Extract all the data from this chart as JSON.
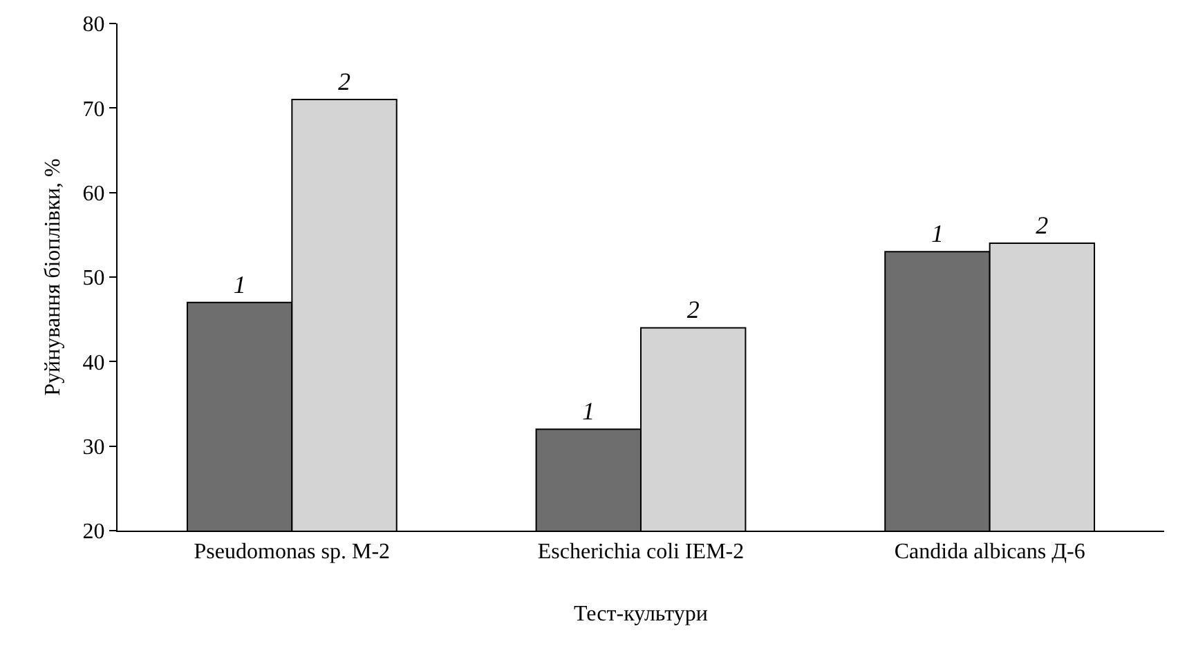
{
  "chart_data": {
    "type": "bar",
    "xlabel": "Тест-культури",
    "ylabel": "Руйнування біоплівки, %",
    "categories": [
      "Pseudomonas sp. M-2",
      "Escherichia coli IEM-2",
      "Candida albicans Д-6"
    ],
    "series": [
      {
        "name": "1",
        "color": "#6e6e6e",
        "values": [
          47,
          32,
          53
        ]
      },
      {
        "name": "2",
        "color": "#d4d4d4",
        "values": [
          71,
          44,
          54
        ]
      }
    ],
    "ylim": [
      20,
      80
    ],
    "yticks": [
      20,
      30,
      40,
      50,
      60,
      70,
      80
    ],
    "grid": false,
    "legend": false
  }
}
